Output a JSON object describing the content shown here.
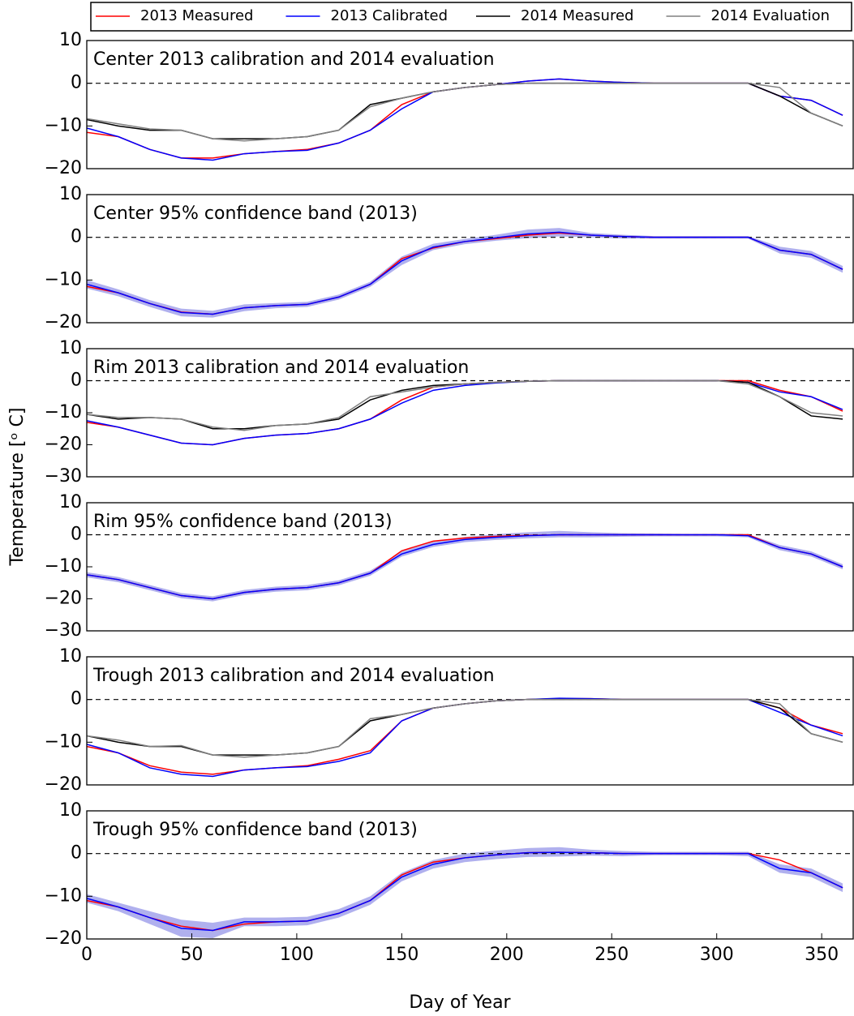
{
  "chart_data": [
    {
      "type": "line",
      "title": "Center 2013 calibration and 2014 evaluation",
      "y_label": "Temperature [ᵒ C]",
      "x": [
        0,
        15,
        30,
        45,
        60,
        75,
        90,
        105,
        120,
        135,
        150,
        165,
        180,
        195,
        210,
        225,
        240,
        255,
        270,
        285,
        300,
        315,
        330,
        345,
        360
      ],
      "xlim": [
        0,
        365
      ],
      "ylim": [
        -20,
        10
      ],
      "yticks": [
        {
          "value": -20,
          "label": "−20"
        },
        {
          "value": -10,
          "label": "−10"
        },
        0,
        10
      ],
      "hline": 0,
      "series": [
        {
          "name": "2013 Measured",
          "color": "#ff0000",
          "values": [
            -11.5,
            -12.5,
            -15.5,
            -17.5,
            -17.5,
            -16.5,
            -16,
            -15.5,
            -14,
            -11,
            -5,
            -2,
            -1,
            -0.3,
            0.5,
            1,
            0.5,
            0.2,
            0,
            0,
            0,
            0,
            -3,
            -4,
            -7.5
          ]
        },
        {
          "name": "2013 Calibrated",
          "color": "#0000ff",
          "values": [
            -10.5,
            -12.5,
            -15.5,
            -17.5,
            -18,
            -16.5,
            -16,
            -15.7,
            -14,
            -11,
            -6,
            -2,
            -1,
            -0.3,
            0.5,
            1,
            0.5,
            0.2,
            0,
            0,
            0,
            0,
            -3,
            -4,
            -7.5
          ]
        },
        {
          "name": "2014 Measured",
          "color": "#000000",
          "values": [
            -8.5,
            -10,
            -11,
            -11,
            -13,
            -13,
            -13,
            -12.5,
            -11,
            -5,
            -3.5,
            -2,
            -1,
            -0.3,
            0,
            0,
            0,
            0,
            0,
            0,
            0,
            0,
            -3,
            -7,
            -10
          ]
        },
        {
          "name": "2014 Evaluation",
          "color": "#808080",
          "values": [
            -8.3,
            -9.5,
            -10.7,
            -11,
            -13,
            -13.5,
            -13,
            -12.5,
            -11,
            -5.5,
            -3.5,
            -2,
            -1,
            -0.3,
            0,
            0,
            0,
            0,
            0,
            0,
            0,
            0,
            -1,
            -7,
            -10
          ]
        }
      ]
    },
    {
      "type": "line",
      "title": "Center 95% confidence band (2013)",
      "x": [
        0,
        15,
        30,
        45,
        60,
        75,
        90,
        105,
        120,
        135,
        150,
        165,
        180,
        195,
        210,
        225,
        240,
        255,
        270,
        285,
        300,
        315,
        330,
        345,
        360
      ],
      "xlim": [
        0,
        365
      ],
      "ylim": [
        -20,
        10
      ],
      "yticks": [
        {
          "value": -20,
          "label": "−20"
        },
        {
          "value": -10,
          "label": "−10"
        },
        0,
        10
      ],
      "hline": 0,
      "band": {
        "color": "#b0b0ee",
        "lower": [
          -12,
          -13.8,
          -16.3,
          -18.5,
          -18.8,
          -17.3,
          -16.6,
          -16.3,
          -14.6,
          -11.6,
          -6.5,
          -3,
          -1.6,
          -0.8,
          -0.2,
          0.2,
          0,
          -0.3,
          -0.3,
          -0.3,
          -0.3,
          -0.3,
          -3.8,
          -4.8,
          -8.3
        ],
        "upper": [
          -10,
          -12.2,
          -14.7,
          -16.7,
          -17.2,
          -15.7,
          -15.4,
          -15.1,
          -13.4,
          -10.4,
          -4.5,
          -1.5,
          -0.4,
          0.6,
          1.8,
          2.2,
          1,
          0.6,
          0.3,
          0.3,
          0.3,
          0.3,
          -2.2,
          -3.2,
          -6.7
        ]
      },
      "series": [
        {
          "color": "#ff0000",
          "values": [
            -11.5,
            -13,
            -15.5,
            -17.5,
            -18,
            -16.5,
            -16,
            -15.7,
            -14,
            -11,
            -5,
            -2.5,
            -1,
            -0.3,
            0.5,
            1,
            0.5,
            0.2,
            0,
            0,
            0,
            0,
            -3,
            -4,
            -7.5
          ]
        },
        {
          "color": "#0000ff",
          "values": [
            -11,
            -13,
            -15.5,
            -17.6,
            -18,
            -16.5,
            -16,
            -15.7,
            -14,
            -11,
            -5.5,
            -2.3,
            -1,
            -0.1,
            0.8,
            1.2,
            0.5,
            0.2,
            0,
            0,
            0,
            0,
            -3,
            -4,
            -7.5
          ]
        }
      ]
    },
    {
      "type": "line",
      "title": "Rim 2013 calibration and 2014 evaluation",
      "x": [
        0,
        15,
        30,
        45,
        60,
        75,
        90,
        105,
        120,
        135,
        150,
        165,
        180,
        195,
        210,
        225,
        240,
        255,
        270,
        285,
        300,
        315,
        330,
        345,
        360
      ],
      "xlim": [
        0,
        365
      ],
      "ylim": [
        -30,
        10
      ],
      "yticks": [
        {
          "value": -30,
          "label": "−30"
        },
        {
          "value": -20,
          "label": "−20"
        },
        {
          "value": -10,
          "label": "−10"
        },
        0,
        10
      ],
      "hline": 0,
      "series": [
        {
          "color": "#ff0000",
          "values": [
            -13,
            -14.5,
            -17,
            -19.5,
            -20,
            -18,
            -17,
            -16.5,
            -15,
            -12,
            -6,
            -2,
            -1,
            -0.5,
            -0.2,
            0,
            0,
            0,
            0,
            0,
            0,
            0,
            -3,
            -5,
            -9.5
          ]
        },
        {
          "color": "#0000ff",
          "values": [
            -12.5,
            -14.5,
            -17,
            -19.5,
            -20,
            -18,
            -17,
            -16.5,
            -15,
            -12,
            -7,
            -3,
            -1.5,
            -0.7,
            -0.2,
            0,
            0,
            0,
            0,
            0,
            0,
            -0.5,
            -3.5,
            -5,
            -9
          ]
        },
        {
          "color": "#000000",
          "values": [
            -10.5,
            -12,
            -11.5,
            -12,
            -15,
            -15,
            -14,
            -13.5,
            -12,
            -6,
            -3,
            -1.5,
            -1,
            -0.5,
            -0.2,
            0,
            0,
            0,
            0,
            0,
            0,
            -0.5,
            -5,
            -11,
            -12
          ]
        },
        {
          "color": "#808080",
          "values": [
            -10.5,
            -11.5,
            -11.5,
            -12,
            -14.5,
            -15.5,
            -14,
            -13.5,
            -11.5,
            -5,
            -3.5,
            -2,
            -1,
            -0.5,
            -0.2,
            0,
            0,
            0,
            0,
            0,
            0,
            -1,
            -5,
            -10,
            -11
          ]
        }
      ]
    },
    {
      "type": "line",
      "title": "Rim 95% confidence band (2013)",
      "x": [
        0,
        15,
        30,
        45,
        60,
        75,
        90,
        105,
        120,
        135,
        150,
        165,
        180,
        195,
        210,
        225,
        240,
        255,
        270,
        285,
        300,
        315,
        330,
        345,
        360
      ],
      "xlim": [
        0,
        365
      ],
      "ylim": [
        -30,
        10
      ],
      "yticks": [
        {
          "value": -30,
          "label": "−30"
        },
        {
          "value": -20,
          "label": "−20"
        },
        {
          "value": -10,
          "label": "−10"
        },
        0,
        10
      ],
      "hline": 0,
      "band": {
        "color": "#b0b0ee",
        "lower": [
          -13.3,
          -14.8,
          -17.3,
          -19.8,
          -20.8,
          -18.8,
          -17.8,
          -17.3,
          -15.8,
          -12.8,
          -6.8,
          -3.8,
          -2.3,
          -1.6,
          -1.1,
          -0.8,
          -0.8,
          -0.6,
          -0.5,
          -0.5,
          -0.5,
          -0.8,
          -4.8,
          -6.8,
          -10.8
        ],
        "upper": [
          -11.7,
          -13.2,
          -15.7,
          -18.2,
          -19.2,
          -17.2,
          -16.2,
          -15.7,
          -14.2,
          -11.2,
          -5.2,
          -2.2,
          -0.7,
          0.2,
          0.8,
          1.2,
          0.8,
          0.5,
          0.4,
          0.3,
          0.3,
          0.2,
          -3.2,
          -5.2,
          -9.2
        ]
      },
      "series": [
        {
          "color": "#ff0000",
          "values": [
            -12.5,
            -14,
            -16.5,
            -19,
            -20,
            -18,
            -17,
            -16.5,
            -15,
            -12,
            -5,
            -2,
            -1,
            -0.5,
            -0.2,
            0,
            0,
            0,
            0,
            0,
            0,
            0,
            -4,
            -6,
            -10
          ]
        },
        {
          "color": "#0000ff",
          "values": [
            -12.5,
            -14,
            -16.5,
            -19,
            -20,
            -18,
            -17,
            -16.5,
            -15,
            -12,
            -6,
            -3,
            -1.5,
            -0.8,
            -0.3,
            0,
            0,
            0,
            0,
            0,
            0,
            -0.3,
            -4,
            -6,
            -10
          ]
        }
      ]
    },
    {
      "type": "line",
      "title": "Trough 2013 calibration and 2014 evaluation",
      "x": [
        0,
        15,
        30,
        45,
        60,
        75,
        90,
        105,
        120,
        135,
        150,
        165,
        180,
        195,
        210,
        225,
        240,
        255,
        270,
        285,
        300,
        315,
        330,
        345,
        360
      ],
      "xlim": [
        0,
        365
      ],
      "ylim": [
        -20,
        10
      ],
      "yticks": [
        {
          "value": -20,
          "label": "−20"
        },
        {
          "value": -10,
          "label": "−10"
        },
        0,
        10
      ],
      "hline": 0,
      "series": [
        {
          "color": "#ff0000",
          "values": [
            -11,
            -12.5,
            -15.5,
            -17,
            -17.5,
            -16.5,
            -16,
            -15.5,
            -14,
            -12,
            -5,
            -2,
            -1,
            -0.3,
            0,
            0.2,
            0.2,
            0,
            0,
            0,
            0,
            0,
            -2,
            -6,
            -8
          ]
        },
        {
          "color": "#0000ff",
          "values": [
            -10.5,
            -12.5,
            -16,
            -17.5,
            -18,
            -16.5,
            -16,
            -15.7,
            -14.5,
            -12.5,
            -5,
            -2,
            -1,
            -0.3,
            0,
            0.3,
            0.2,
            0,
            0,
            0,
            0,
            0,
            -3,
            -6,
            -8.5
          ]
        },
        {
          "color": "#000000",
          "values": [
            -8.5,
            -10,
            -11,
            -11,
            -13,
            -13,
            -13,
            -12.5,
            -11,
            -5,
            -3.5,
            -2,
            -1,
            -0.3,
            0,
            0,
            0,
            0,
            0,
            0,
            0,
            0,
            -2,
            -8,
            -10
          ]
        },
        {
          "color": "#808080",
          "values": [
            -8.5,
            -9.5,
            -11,
            -10.8,
            -13,
            -13.5,
            -13,
            -12.5,
            -11,
            -4.5,
            -3.5,
            -2,
            -1,
            -0.3,
            0,
            0,
            0,
            0,
            0,
            0,
            0,
            0,
            -1,
            -8,
            -10
          ]
        }
      ]
    },
    {
      "type": "line",
      "title": "Trough 95% confidence band (2013)",
      "x_label": "Day of Year",
      "x": [
        0,
        15,
        30,
        45,
        60,
        75,
        90,
        105,
        120,
        135,
        150,
        165,
        180,
        195,
        210,
        225,
        240,
        255,
        270,
        285,
        300,
        315,
        330,
        345,
        360
      ],
      "xlim": [
        0,
        365
      ],
      "ylim": [
        -20,
        10
      ],
      "xticks": [
        0,
        50,
        100,
        150,
        200,
        250,
        300,
        350
      ],
      "yticks": [
        {
          "value": -20,
          "label": "−20"
        },
        {
          "value": -10,
          "label": "−10"
        },
        0,
        10
      ],
      "hline": 0,
      "band": {
        "color": "#b0b0ee",
        "lower": [
          -11.5,
          -13.5,
          -16.5,
          -19.5,
          -19.8,
          -17,
          -17,
          -16.8,
          -15,
          -12,
          -6.5,
          -3.5,
          -2,
          -1.3,
          -0.8,
          -0.7,
          -0.5,
          -0.6,
          -0.4,
          -0.4,
          -0.4,
          -0.6,
          -4.5,
          -5.5,
          -9
        ],
        "upper": [
          -9.5,
          -11.5,
          -13.5,
          -15.5,
          -16.2,
          -15,
          -15,
          -14.8,
          -13,
          -10,
          -4.5,
          -1.5,
          0,
          0.7,
          1.3,
          1.5,
          0.9,
          0.6,
          0.4,
          0.4,
          0.4,
          0.4,
          -2.5,
          -3.5,
          -7
        ]
      },
      "series": [
        {
          "color": "#ff0000",
          "values": [
            -11,
            -12.5,
            -15,
            -17,
            -18,
            -16.5,
            -16,
            -15.8,
            -14,
            -11,
            -5,
            -2,
            -1,
            -0.3,
            0.2,
            0.3,
            0.2,
            0,
            0,
            0,
            0,
            0,
            -1.5,
            -4.5,
            -8
          ]
        },
        {
          "color": "#0000ff",
          "values": [
            -10.5,
            -12.5,
            -15,
            -17.5,
            -18,
            -16,
            -16,
            -15.8,
            -14,
            -11,
            -5.5,
            -2.5,
            -1,
            -0.3,
            0.2,
            0.3,
            0.2,
            0,
            0,
            0,
            0,
            0,
            -3.5,
            -4.5,
            -8
          ]
        }
      ]
    }
  ]
}
